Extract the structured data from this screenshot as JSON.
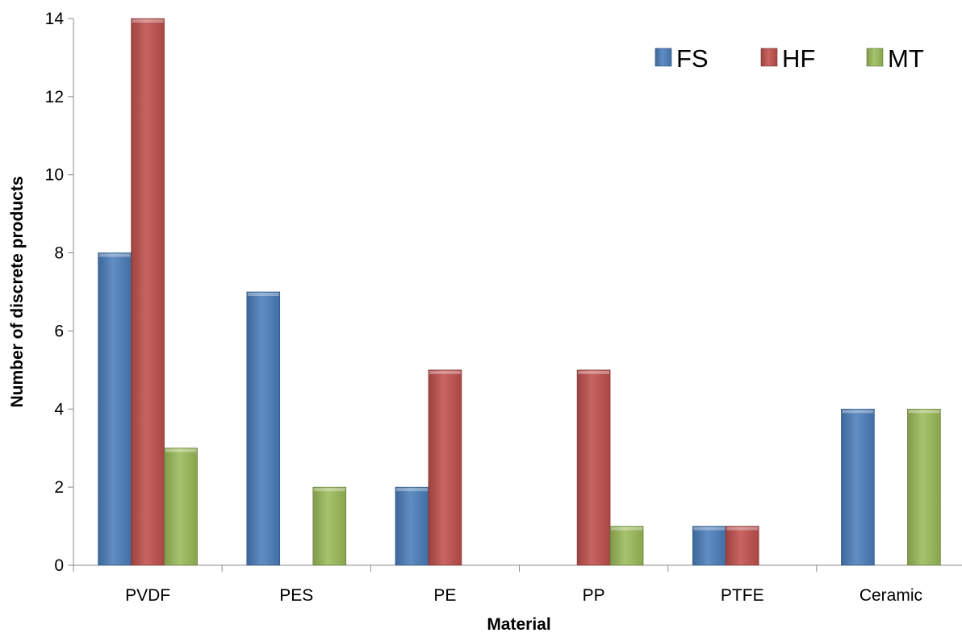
{
  "chart_data": {
    "type": "bar",
    "title": "",
    "xlabel": "Material",
    "ylabel": "Number of discrete products",
    "categories": [
      "PVDF",
      "PES",
      "PE",
      "PP",
      "PTFE",
      "Ceramic"
    ],
    "series": [
      {
        "name": "FS",
        "values": [
          8,
          7,
          2,
          0,
          1,
          4
        ],
        "color": "#4a7ebb"
      },
      {
        "name": "HF",
        "values": [
          14,
          0,
          5,
          5,
          1,
          0
        ],
        "color": "#c0504d"
      },
      {
        "name": "MT",
        "values": [
          3,
          2,
          0,
          1,
          0,
          4
        ],
        "color": "#9bbb59"
      }
    ],
    "ylim": [
      0,
      14
    ],
    "yticks": [
      0,
      2,
      4,
      6,
      8,
      10,
      12,
      14
    ],
    "grid": false,
    "legend_position": "top-right"
  }
}
